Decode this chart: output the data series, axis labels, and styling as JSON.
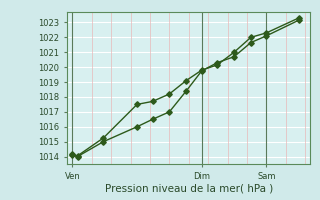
{
  "xlabel": "Pression niveau de la mer( hPa )",
  "bg_color": "#d0eaea",
  "plot_bg_color": "#d8f0f0",
  "grid_color_h": "#ffffff",
  "grid_color_v": "#e8b8b8",
  "line_color": "#2d5a1b",
  "vline_color": "#5a7a5a",
  "ylim": [
    1013.5,
    1023.7
  ],
  "yticks": [
    1014,
    1015,
    1016,
    1017,
    1018,
    1019,
    1020,
    1021,
    1022,
    1023
  ],
  "xtick_labels": [
    "Ven",
    "Dim",
    "Sam"
  ],
  "xtick_positions": [
    0,
    0.5,
    0.75
  ],
  "vline_positions": [
    0.0,
    0.5,
    0.75
  ],
  "series1_x": [
    0.0,
    0.02,
    0.12,
    0.25,
    0.31,
    0.375,
    0.44,
    0.5,
    0.56,
    0.625,
    0.69,
    0.75,
    0.875
  ],
  "series1_y": [
    1014.15,
    1014.05,
    1015.25,
    1017.5,
    1017.7,
    1018.2,
    1019.1,
    1019.8,
    1020.15,
    1021.0,
    1022.0,
    1022.3,
    1023.3
  ],
  "series2_x": [
    0.0,
    0.02,
    0.12,
    0.25,
    0.31,
    0.375,
    0.44,
    0.5,
    0.56,
    0.625,
    0.69,
    0.75,
    0.875
  ],
  "series2_y": [
    1014.1,
    1014.0,
    1015.0,
    1016.0,
    1016.5,
    1017.0,
    1018.4,
    1019.75,
    1020.3,
    1020.7,
    1021.65,
    1022.1,
    1023.15
  ],
  "marker_size": 2.8,
  "line_width": 1.0,
  "tick_fontsize": 6.0,
  "xlabel_fontsize": 7.5
}
